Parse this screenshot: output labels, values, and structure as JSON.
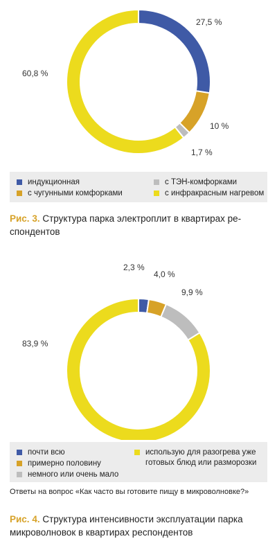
{
  "colors": {
    "blue": "#3f5aa6",
    "orange": "#d7a228",
    "gray": "#bdbdbd",
    "yellow": "#ecdb1d",
    "caption_label": "#d7a228"
  },
  "chart_data": [
    {
      "type": "pie",
      "donut": true,
      "slices": [
        {
          "label": "индукционная",
          "value": 27.5,
          "text": "27,5 %",
          "color": "#3f5aa6"
        },
        {
          "label": "с чугунными комфорками",
          "value": 10,
          "text": "10 %",
          "color": "#d7a228"
        },
        {
          "label": "с ТЭН-комфорками",
          "value": 1.7,
          "text": "1,7 %",
          "color": "#bdbdbd"
        },
        {
          "label": "с инфракрасным нагревом",
          "value": 60.8,
          "text": "60,8 %",
          "color": "#ecdb1d"
        }
      ]
    },
    {
      "type": "pie",
      "donut": true,
      "slices": [
        {
          "label": "почти всю",
          "value": 2.3,
          "text": "2,3 %",
          "color": "#3f5aa6"
        },
        {
          "label": "примерно половину",
          "value": 4.0,
          "text": "4,0 %",
          "color": "#d7a228"
        },
        {
          "label": "немного или очень мало",
          "value": 9.9,
          "text": "9,9 %",
          "color": "#bdbdbd"
        },
        {
          "label": "использую для разогрева уже готовых блюд или разморозки",
          "value": 83.9,
          "text": "83,9 %",
          "color": "#ecdb1d"
        }
      ]
    }
  ],
  "figure1": {
    "legend": [
      {
        "label": "индукционная",
        "color": "#3f5aa6"
      },
      {
        "label": "с ТЭН-комфорками",
        "color": "#bdbdbd"
      },
      {
        "label": "с чугунными комфорками",
        "color": "#d7a228"
      },
      {
        "label": "с инфракрасным нагревом",
        "color": "#ecdb1d"
      }
    ],
    "caption_label": "Рис. 3.",
    "caption_text": "Структура парка электроплит в квартирах ре-спондентов"
  },
  "figure2": {
    "legend": [
      {
        "label": "почти всю",
        "color": "#3f5aa6"
      },
      {
        "label": "использую для разогрева уже готовых блюд или разморозки",
        "color": "#ecdb1d"
      },
      {
        "label": "примерно половину",
        "color": "#d7a228"
      },
      {
        "label": "немного или очень мало",
        "color": "#bdbdbd"
      }
    ],
    "note": "Ответы на вопрос «Как часто вы готовите пищу в микроволновке?»",
    "caption_label": "Рис. 4.",
    "caption_text": "Структура интенсивности эксплуатации парка микроволновок в квартирах респондентов"
  }
}
